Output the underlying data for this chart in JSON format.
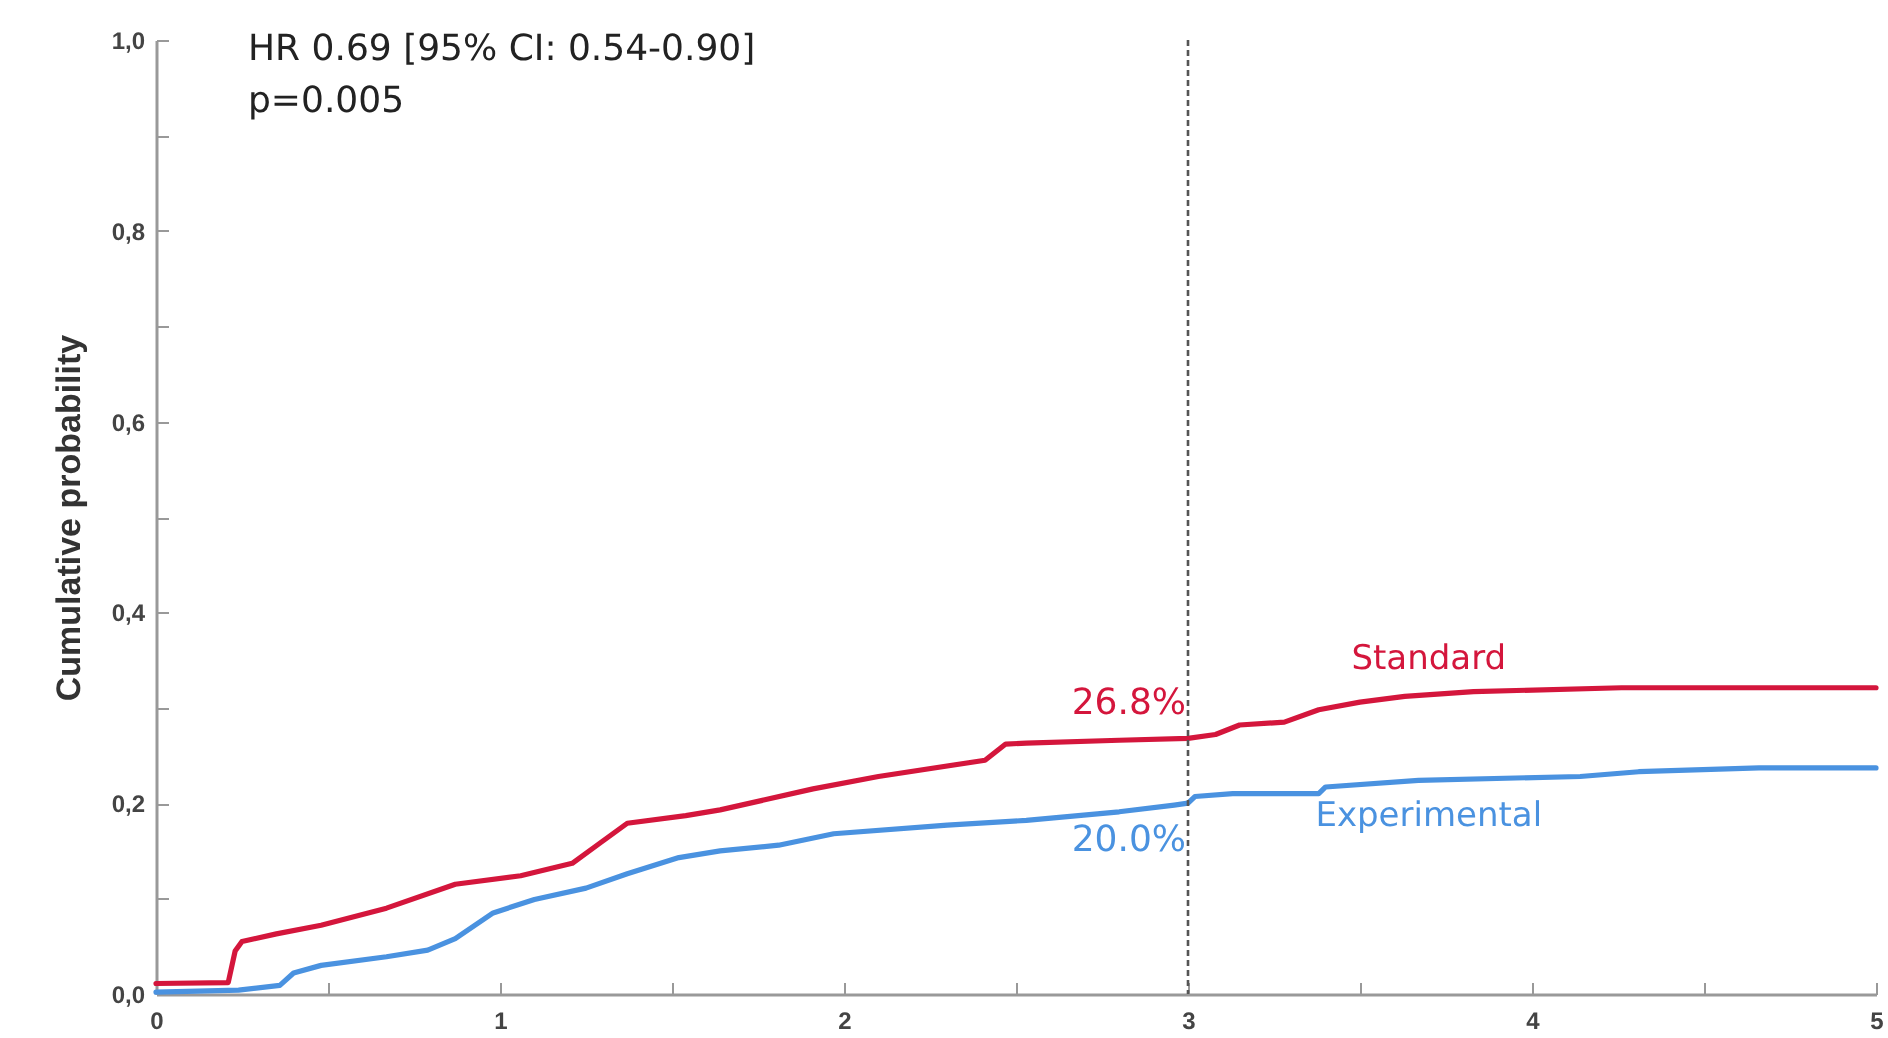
{
  "chart_data": {
    "type": "line",
    "ylabel": "Cumulative probability",
    "annotations": [
      "HR 0.69 [95% CI: 0.54-0.90]",
      "p=0.005",
      {
        "text": "26.8%",
        "x": 3,
        "y": 0.268
      },
      {
        "text": "20.0%",
        "x": 3,
        "y": 0.2
      }
    ],
    "series": [
      {
        "name": "Standard",
        "color": "#d4163c",
        "x": [
          0,
          0.21,
          0.23,
          0.25,
          0.35,
          0.48,
          0.67,
          0.87,
          1.06,
          1.21,
          1.29,
          1.37,
          1.54,
          1.64,
          1.91,
          2.1,
          2.41,
          2.47,
          2.53,
          2.8,
          3,
          3.08,
          3.15,
          3.28,
          3.38,
          3.5,
          3.63,
          3.83,
          4.26,
          5
        ],
        "values": [
          0.011,
          0.012,
          0.045,
          0.055,
          0.063,
          0.072,
          0.09,
          0.115,
          0.124,
          0.137,
          0.158,
          0.179,
          0.187,
          0.193,
          0.215,
          0.228,
          0.245,
          0.262,
          0.263,
          0.266,
          0.268,
          0.272,
          0.282,
          0.285,
          0.298,
          0.306,
          0.312,
          0.317,
          0.321,
          0.321
        ]
      },
      {
        "name": "Experimental",
        "color": "#4a92e0",
        "x": [
          0,
          0.24,
          0.36,
          0.4,
          0.48,
          0.67,
          0.79,
          0.87,
          0.98,
          1.1,
          1.25,
          1.37,
          1.52,
          1.64,
          1.81,
          1.97,
          2.3,
          2.53,
          2.8,
          2.96,
          3,
          3.02,
          3.13,
          3.38,
          3.4,
          3.67,
          4.14,
          4.31,
          4.66,
          5
        ],
        "values": [
          0.002,
          0.004,
          0.009,
          0.022,
          0.03,
          0.039,
          0.046,
          0.058,
          0.085,
          0.099,
          0.111,
          0.126,
          0.143,
          0.15,
          0.156,
          0.168,
          0.177,
          0.182,
          0.191,
          0.198,
          0.2,
          0.207,
          0.21,
          0.21,
          0.217,
          0.224,
          0.228,
          0.233,
          0.237,
          0.237
        ]
      }
    ],
    "xlim": [
      0,
      5
    ],
    "xticks": [
      0,
      {
        "value": 0.5,
        "label": null
      },
      1,
      {
        "value": 1.5,
        "label": null
      },
      2,
      {
        "value": 2.5,
        "label": null
      },
      3,
      {
        "value": 3.5,
        "label": null
      },
      4,
      {
        "value": 4.5,
        "label": null
      },
      5
    ],
    "ylim": [
      0,
      1
    ],
    "yticks": [
      {
        "value": 0,
        "label": "0,0"
      },
      {
        "value": 0.1,
        "label": null
      },
      {
        "value": 0.2,
        "label": "0,2"
      },
      {
        "value": 0.3,
        "label": null
      },
      {
        "value": 0.4,
        "label": "0,4"
      },
      {
        "value": 0.5,
        "label": null
      },
      {
        "value": 0.6,
        "label": "0,6"
      },
      {
        "value": 0.7,
        "label": null
      },
      {
        "value": 0.8,
        "label": "0,8"
      },
      {
        "value": 0.9,
        "label": null
      },
      {
        "value": 1,
        "label": "1,0"
      }
    ],
    "ref_lines": [
      {
        "axis": "x",
        "value": 3,
        "color": "#555555",
        "line_style": "dotted"
      }
    ],
    "grid": false,
    "legend": false
  }
}
